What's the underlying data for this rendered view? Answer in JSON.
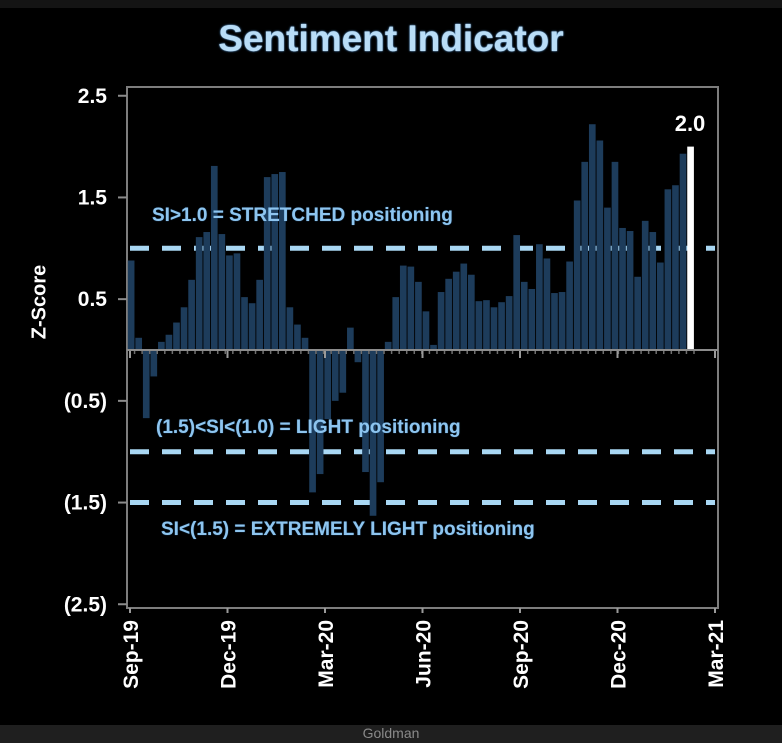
{
  "page": {
    "title": "Sentiment Indicator",
    "source_label": "Goldman"
  },
  "chart_data": {
    "type": "bar",
    "title": "Sentiment Indicator",
    "ylabel": "Z-Score",
    "xlabel": "",
    "frequency": "weekly",
    "x_ticks": [
      "Sep-19",
      "Dec-19",
      "Mar-20",
      "Jun-20",
      "Sep-20",
      "Dec-20",
      "Mar-21"
    ],
    "y_ticks": [
      {
        "label": "2.5",
        "value": 2.5
      },
      {
        "label": "1.5",
        "value": 1.5
      },
      {
        "label": "0.5",
        "value": 0.5
      },
      {
        "label": "(0.5)",
        "value": -0.5
      },
      {
        "label": "(1.5)",
        "value": -1.5
      },
      {
        "label": "(2.5)",
        "value": -2.5
      }
    ],
    "ylim": [
      -2.6,
      2.6
    ],
    "grid": false,
    "values": [
      0.88,
      0.12,
      -0.67,
      -0.26,
      0.08,
      0.15,
      0.27,
      0.42,
      0.69,
      1.11,
      1.16,
      1.81,
      1.14,
      0.93,
      0.95,
      0.52,
      0.46,
      0.69,
      1.7,
      1.73,
      1.75,
      0.42,
      0.25,
      0.12,
      -1.4,
      -1.22,
      -0.68,
      -0.5,
      -0.42,
      0.22,
      -0.12,
      -1.2,
      -1.63,
      -1.3,
      0.08,
      0.52,
      0.83,
      0.82,
      0.67,
      0.38,
      0.05,
      0.57,
      0.7,
      0.77,
      0.85,
      0.74,
      0.48,
      0.49,
      0.42,
      0.47,
      0.53,
      1.13,
      0.67,
      0.6,
      1.04,
      0.9,
      0.56,
      0.57,
      0.87,
      1.47,
      1.85,
      2.22,
      2.06,
      1.4,
      1.85,
      1.2,
      1.17,
      0.72,
      1.27,
      1.16,
      0.86,
      1.58,
      1.62,
      1.93,
      2.0
    ],
    "last_value": 2.0,
    "last_value_label": "2.0",
    "reference_lines": [
      {
        "value": 1.0
      },
      {
        "value": -1.0
      },
      {
        "value": -1.5
      }
    ],
    "annotations": [
      {
        "text": "SI>1.0 = STRETCHED positioning"
      },
      {
        "text": "(1.5)<SI<(1.0) = LIGHT positioning"
      },
      {
        "text": "SI<(1.5) = EXTREMELY LIGHT positioning"
      }
    ],
    "colors": {
      "bar": "#1d3c5b",
      "highlight_bar": "#ffffff",
      "reference_line": "#a9d7f3",
      "annotation_text": "#8ec5ef",
      "title_text": "#b9ddf7",
      "axis_text": "#ffffff",
      "axis_line": "#7d7d7d",
      "background": "#000000"
    },
    "source": "Goldman"
  }
}
